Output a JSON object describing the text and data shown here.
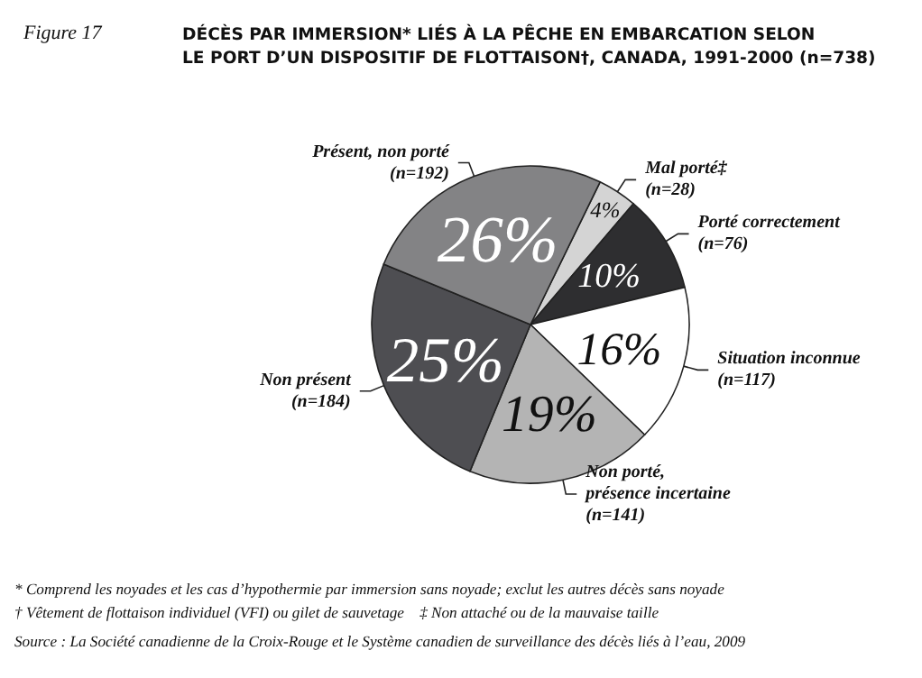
{
  "chart_data": {
    "type": "pie",
    "title": "DÉCÈS PAR IMMERSION* LIÉS À LA PÊCHE EN EMBARCATION SELON\nLE PORT D’UN DISPOSITIF DE FLOTTAISON†, CANADA, 1991-2000 (n=738)",
    "subtitle": "Figure 17",
    "categories": [
      "Mal porté‡\n(n=28)",
      "Porté correctement\n(n=76)",
      "Situation inconnue\n(n=117)",
      "Non porté,\nprésence incertaine\n(n=141)",
      "Non présent\n(n=184)",
      "Présent, non porté\n(n=192)"
    ],
    "values": [
      4,
      10,
      16,
      19,
      25,
      26
    ],
    "value_labels": [
      "4%",
      "10%",
      "16%",
      "19%",
      "25%",
      "26%"
    ],
    "colors": [
      "#d4d4d4",
      "#2e2e30",
      "#ffffff",
      "#b4b4b4",
      "#4e4e52",
      "#838385"
    ],
    "annotations": [
      "* Comprend les noyades et les cas d’hypothermie par immersion sans noyade; exclut les autres décès sans noyade",
      "† Vêtement de flottaison individuel (VFI) ou gilet de sauvetage    ‡ Non attaché ou de la mauvaise taille",
      "Source : La Société canadienne de la Croix-Rouge et le Système canadien de surveillance des décès liés à l’eau, 2009"
    ]
  }
}
